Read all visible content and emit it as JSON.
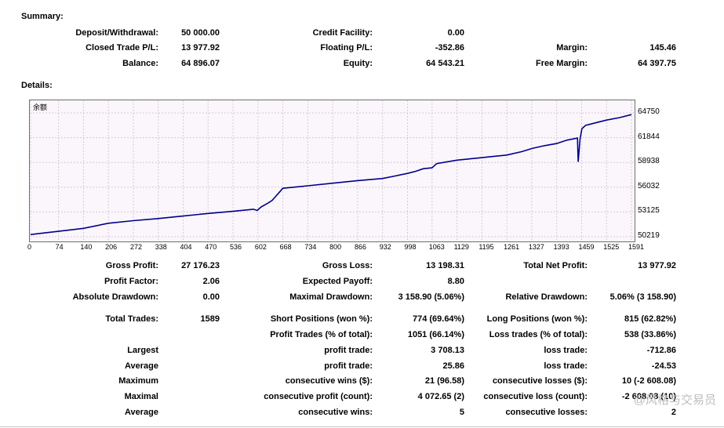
{
  "summary": {
    "title": "Summary:",
    "deposit_label": "Deposit/Withdrawal:",
    "deposit": "50 000.00",
    "credit_label": "Credit Facility:",
    "credit": "0.00",
    "closed_label": "Closed Trade P/L:",
    "closed": "13 977.92",
    "floating_label": "Floating P/L:",
    "floating": "-352.86",
    "margin_label": "Margin:",
    "margin": "145.46",
    "balance_label": "Balance:",
    "balance": "64 896.07",
    "equity_label": "Equity:",
    "equity": "64 543.21",
    "free_margin_label": "Free Margin:",
    "free_margin": "64 397.75"
  },
  "details": {
    "title": "Details:",
    "gross_profit_label": "Gross Profit:",
    "gross_profit": "27 176.23",
    "gross_loss_label": "Gross Loss:",
    "gross_loss": "13 198.31",
    "net_profit_label": "Total Net Profit:",
    "net_profit": "13 977.92",
    "profit_factor_label": "Profit Factor:",
    "profit_factor": "2.06",
    "expected_payoff_label": "Expected Payoff:",
    "expected_payoff": "8.80",
    "abs_dd_label": "Absolute Drawdown:",
    "abs_dd": "0.00",
    "max_dd_label": "Maximal Drawdown:",
    "max_dd": "3 158.90 (5.06%)",
    "rel_dd_label": "Relative Drawdown:",
    "rel_dd": "5.06% (3 158.90)",
    "total_trades_label": "Total Trades:",
    "total_trades": "1589",
    "short_label": "Short Positions (won %):",
    "short": "774 (69.64%)",
    "long_label": "Long Positions (won %):",
    "long": "815 (62.82%)",
    "profit_trades_label": "Profit Trades (% of total):",
    "profit_trades": "1051 (66.14%)",
    "loss_trades_label": "Loss trades (% of total):",
    "loss_trades": "538 (33.86%)",
    "largest_label": "Largest",
    "largest_profit_label": "profit trade:",
    "largest_profit": "3 708.13",
    "largest_loss_label": "loss trade:",
    "largest_loss": "-712.86",
    "average_label": "Average",
    "avg_profit_label": "profit trade:",
    "avg_profit": "25.86",
    "avg_loss_label": "loss trade:",
    "avg_loss": "-24.53",
    "maximum_label": "Maximum",
    "max_wins_label": "consecutive wins ($):",
    "max_wins": "21 (96.58)",
    "max_losses_label": "consecutive losses ($):",
    "max_losses": "10 (-2 608.08)",
    "maximal_label": "Maximal",
    "maximal_profit_label": "consecutive profit (count):",
    "maximal_profit": "4 072.65 (2)",
    "maximal_loss_label": "consecutive loss (count):",
    "maximal_loss": "-2 608.08 (10)",
    "average2_label": "Average",
    "avg_cons_wins_label": "consecutive wins:",
    "avg_cons_wins": "5",
    "avg_cons_losses_label": "consecutive losses:",
    "avg_cons_losses": "2"
  },
  "watermark": "@风格与交易员",
  "chart_data": {
    "type": "line",
    "legend": "余额",
    "line_color": "#00008b",
    "y_ticks": [
      "64750",
      "61844",
      "58938",
      "56032",
      "53125",
      "50219"
    ],
    "x_ticks": [
      "0",
      "74",
      "140",
      "206",
      "272",
      "338",
      "404",
      "470",
      "536",
      "602",
      "668",
      "734",
      "800",
      "866",
      "932",
      "998",
      "1063",
      "1129",
      "1195",
      "1261",
      "1327",
      "1393",
      "1459",
      "1525",
      "1591"
    ],
    "ylim": [
      50219,
      64750
    ],
    "xlim": [
      0,
      1610
    ],
    "grid": true,
    "x": [
      0,
      74,
      140,
      206,
      272,
      338,
      404,
      470,
      536,
      590,
      600,
      610,
      620,
      630,
      640,
      668,
      734,
      800,
      866,
      932,
      960,
      998,
      1020,
      1040,
      1063,
      1075,
      1129,
      1195,
      1261,
      1300,
      1330,
      1360,
      1393,
      1420,
      1448,
      1450,
      1455,
      1460,
      1470,
      1525,
      1560,
      1591
    ],
    "y": [
      50480,
      50850,
      51200,
      51800,
      52100,
      52350,
      52650,
      52950,
      53200,
      53450,
      53300,
      53700,
      53950,
      54200,
      54500,
      55900,
      56200,
      56500,
      56800,
      57050,
      57300,
      57650,
      57900,
      58200,
      58300,
      58800,
      59200,
      59500,
      59800,
      60200,
      60600,
      60900,
      61150,
      61550,
      61800,
      59000,
      61700,
      62900,
      63300,
      63900,
      64200,
      64550
    ]
  }
}
